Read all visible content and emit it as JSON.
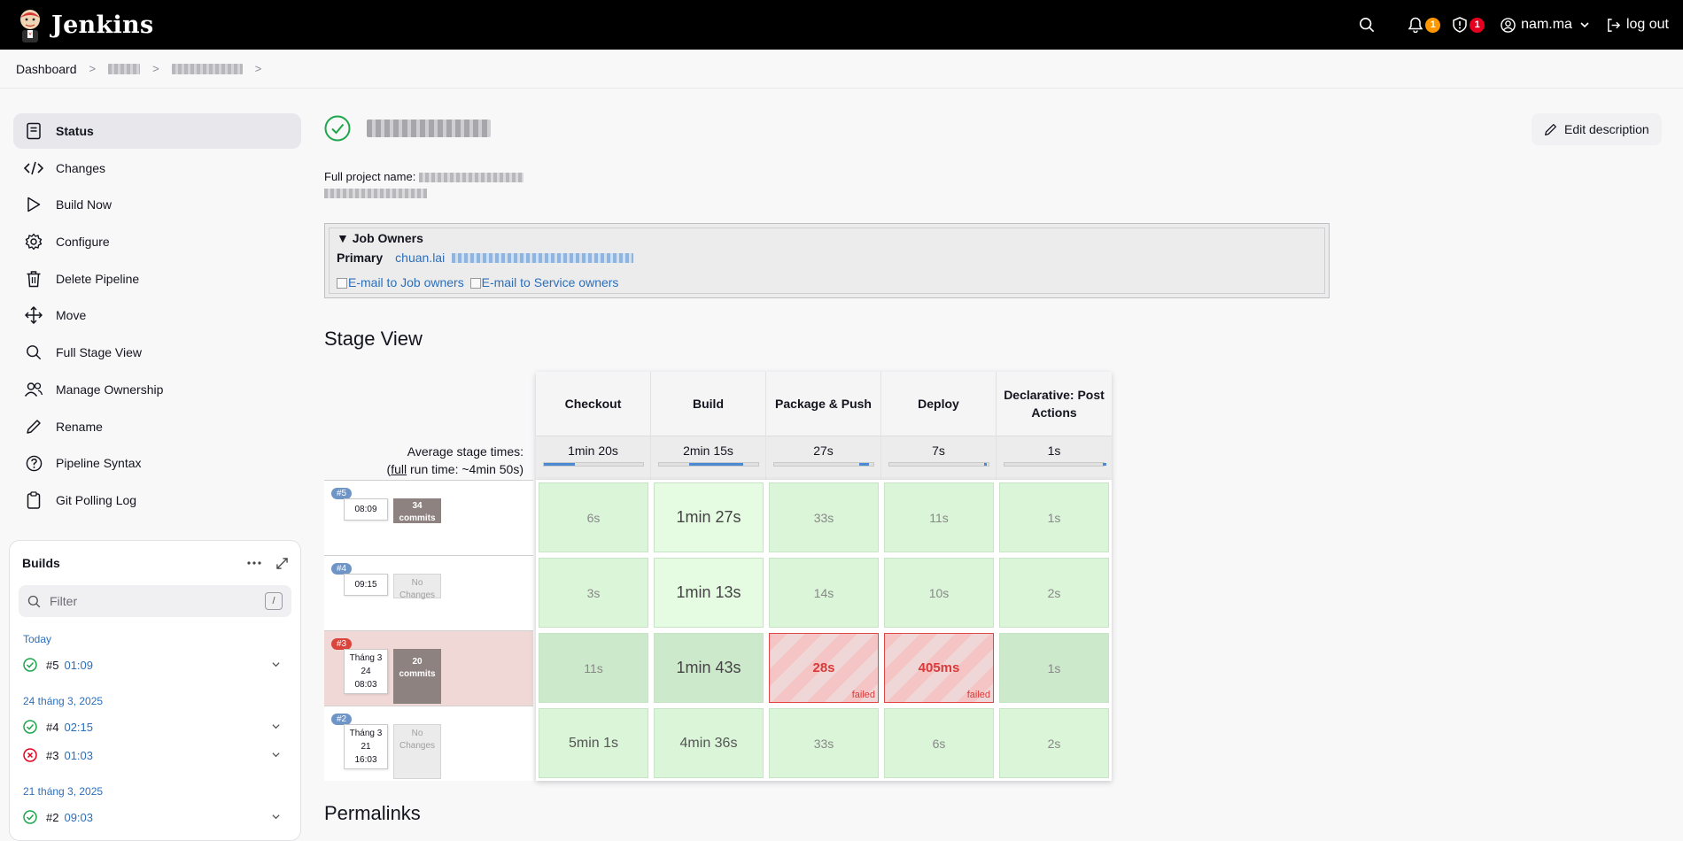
{
  "header": {
    "app_name": "Jenkins",
    "notifications_count": "1",
    "security_count": "1",
    "user": "nam.ma",
    "logout": "log out"
  },
  "breadcrumb": {
    "items": [
      "Dashboard"
    ]
  },
  "sidebar": {
    "tasks": [
      {
        "label": "Status",
        "icon": "status-icon"
      },
      {
        "label": "Changes",
        "icon": "code-icon"
      },
      {
        "label": "Build Now",
        "icon": "play-icon"
      },
      {
        "label": "Configure",
        "icon": "gear-icon"
      },
      {
        "label": "Delete Pipeline",
        "icon": "trash-icon"
      },
      {
        "label": "Move",
        "icon": "move-icon"
      },
      {
        "label": "Full Stage View",
        "icon": "search-icon"
      },
      {
        "label": "Manage Ownership",
        "icon": "people-icon"
      },
      {
        "label": "Rename",
        "icon": "pencil-icon"
      },
      {
        "label": "Pipeline Syntax",
        "icon": "help-icon"
      },
      {
        "label": "Git Polling Log",
        "icon": "clipboard-icon"
      }
    ]
  },
  "builds": {
    "title": "Builds",
    "filter_placeholder": "Filter",
    "filter_shortcut": "/",
    "groups": [
      {
        "date": "Today",
        "items": [
          {
            "num": "#5",
            "time": "01:09",
            "status": "success"
          }
        ]
      },
      {
        "date": "24 tháng 3, 2025",
        "items": [
          {
            "num": "#4",
            "time": "02:15",
            "status": "success"
          },
          {
            "num": "#3",
            "time": "01:03",
            "status": "failed"
          }
        ]
      },
      {
        "date": "21 tháng 3, 2025",
        "items": [
          {
            "num": "#2",
            "time": "09:03",
            "status": "success"
          }
        ]
      }
    ]
  },
  "main": {
    "edit_description": "Edit description",
    "full_project_name_label": "Full project name:",
    "owners": {
      "heading": "▼ Job Owners",
      "primary_label": "Primary",
      "primary_user": "chuan.lai",
      "mail_job_owners": "E-mail to Job owners",
      "mail_service_owners": "E-mail to Service owners"
    },
    "stage_view_title": "Stage View",
    "permalinks_title": "Permalinks"
  },
  "stage_view": {
    "avg_label_1": "Average stage times:",
    "avg_label_full": "full",
    "avg_label_2_open": "(",
    "avg_label_2_rest": " run time: ~4min 50s)",
    "stages": [
      {
        "name": "Checkout",
        "avg": "1min 20s",
        "bar_from": 0.0,
        "bar_to": 0.32
      },
      {
        "name": "Build",
        "avg": "2min 15s",
        "bar_from": 0.31,
        "bar_to": 0.85
      },
      {
        "name": "Package & Push",
        "avg": "27s",
        "bar_from": 0.86,
        "bar_to": 0.96
      },
      {
        "name": "Deploy",
        "avg": "7s",
        "bar_from": 0.96,
        "bar_to": 0.99
      },
      {
        "name": "Declarative: Post Actions",
        "avg": "1s",
        "bar_from": 0.995,
        "bar_to": 1.0
      }
    ],
    "runs": [
      {
        "num": "#5",
        "date_lines": [
          "08:09"
        ],
        "changes": [
          "34",
          "commits"
        ],
        "changes_type": "commits",
        "failed": false,
        "cells": [
          {
            "t": "6s"
          },
          {
            "t": "1min 27s",
            "big": true
          },
          {
            "t": "33s"
          },
          {
            "t": "11s"
          },
          {
            "t": "1s"
          }
        ]
      },
      {
        "num": "#4",
        "date_lines": [
          "09:15"
        ],
        "changes": [
          "No",
          "Changes"
        ],
        "changes_type": "nochg",
        "failed": false,
        "cells": [
          {
            "t": "3s"
          },
          {
            "t": "1min 13s",
            "big": true
          },
          {
            "t": "14s"
          },
          {
            "t": "10s"
          },
          {
            "t": "2s"
          }
        ]
      },
      {
        "num": "#3",
        "date_lines": [
          "Tháng 3",
          "24",
          "08:03"
        ],
        "changes": [
          "20",
          "commits"
        ],
        "changes_type": "commits",
        "failed": true,
        "cells": [
          {
            "t": "11s"
          },
          {
            "t": "1min 43s",
            "big": true
          },
          {
            "t": "28s",
            "failed": true
          },
          {
            "t": "405ms",
            "failed": true
          },
          {
            "t": "1s"
          }
        ]
      },
      {
        "num": "#2",
        "date_lines": [
          "Tháng 3",
          "21",
          "16:03"
        ],
        "changes": [
          "No",
          "Changes"
        ],
        "changes_type": "nochg",
        "failed": false,
        "cells": [
          {
            "t": "5min 1s",
            "med": true
          },
          {
            "t": "4min 36s",
            "med": true
          },
          {
            "t": "33s"
          },
          {
            "t": "6s"
          },
          {
            "t": "2s"
          }
        ]
      }
    ],
    "failed_tag": "failed"
  }
}
